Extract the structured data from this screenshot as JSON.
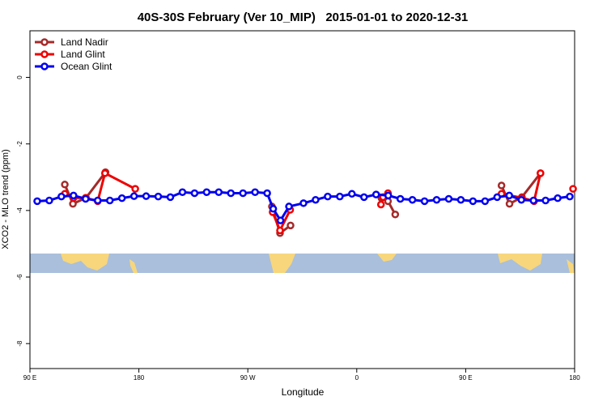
{
  "chart_data": {
    "type": "line",
    "title": "40S-30S February (Ver 10_MIP)   2015-01-01 to 2020-12-31",
    "x_label": "Longitude",
    "y_label": "XCO2 - MLO trend (ppm)",
    "xlim": [
      90,
      540
    ],
    "ylim": [
      -8.75,
      1.4
    ],
    "xticks": [
      {
        "value": 90,
        "label": "90 E"
      },
      180,
      {
        "value": 270,
        "label": "90 W"
      },
      {
        "value": 360,
        "label": "0"
      },
      {
        "value": 450,
        "label": "90 E"
      },
      {
        "value": 540,
        "label": "180"
      }
    ],
    "yticks": [
      0,
      -2,
      -4,
      -6,
      -8
    ],
    "legend": "top-left",
    "series": [
      {
        "name": "Land Nadir",
        "color": "#a52a2a",
        "x": [
          118.8,
          125.5,
          136.3,
          152.4,
          null,
          289.9,
          296.6,
          305.3,
          null,
          380.4,
          385.8,
          391.8,
          null,
          479.6,
          486.2,
          496.4,
          511.8
        ],
        "values": [
          -3.22,
          -3.8,
          -3.62,
          -2.85,
          null,
          -3.88,
          -4.68,
          -4.45,
          null,
          -3.63,
          -3.72,
          -4.12,
          null,
          -3.25,
          -3.8,
          -3.6,
          -2.88
        ]
      },
      {
        "name": "Land Glint",
        "color": "#ee0000",
        "x": [
          118.8,
          126,
          136,
          146,
          152,
          177,
          null,
          290.5,
          296.6,
          305,
          null,
          380,
          381.7,
          385.8,
          null,
          479.6,
          496.4,
          506.5,
          511.8,
          null,
          538.7
        ],
        "values": [
          -3.5,
          -3.62,
          -3.62,
          -3.72,
          -2.88,
          -3.35,
          null,
          -4.05,
          -4.6,
          -3.98,
          null,
          -3.82,
          -3.6,
          -3.48,
          null,
          -3.5,
          -3.62,
          -3.72,
          -2.88,
          null,
          -3.35
        ]
      },
      {
        "name": "Ocean Glint",
        "color": "#0000ee",
        "x": [
          96,
          106,
          116,
          126,
          136,
          146,
          156,
          166,
          176,
          186,
          196,
          206,
          216,
          226,
          236,
          246,
          256,
          266,
          276,
          286,
          291,
          297,
          304,
          316,
          326,
          336,
          346,
          356,
          366,
          376,
          386,
          396,
          406,
          416,
          426,
          436,
          446,
          456,
          466,
          476,
          486,
          496,
          506,
          516,
          526,
          536
        ],
        "values": [
          -3.72,
          -3.7,
          -3.58,
          -3.55,
          -3.65,
          -3.7,
          -3.7,
          -3.63,
          -3.57,
          -3.57,
          -3.58,
          -3.6,
          -3.45,
          -3.48,
          -3.45,
          -3.45,
          -3.48,
          -3.48,
          -3.45,
          -3.48,
          -3.95,
          -4.3,
          -3.88,
          -3.78,
          -3.68,
          -3.58,
          -3.58,
          -3.5,
          -3.6,
          -3.52,
          -3.55,
          -3.65,
          -3.68,
          -3.72,
          -3.68,
          -3.65,
          -3.68,
          -3.72,
          -3.72,
          -3.6,
          -3.55,
          -3.68,
          -3.7,
          -3.7,
          -3.63,
          -3.58
        ]
      }
    ]
  }
}
